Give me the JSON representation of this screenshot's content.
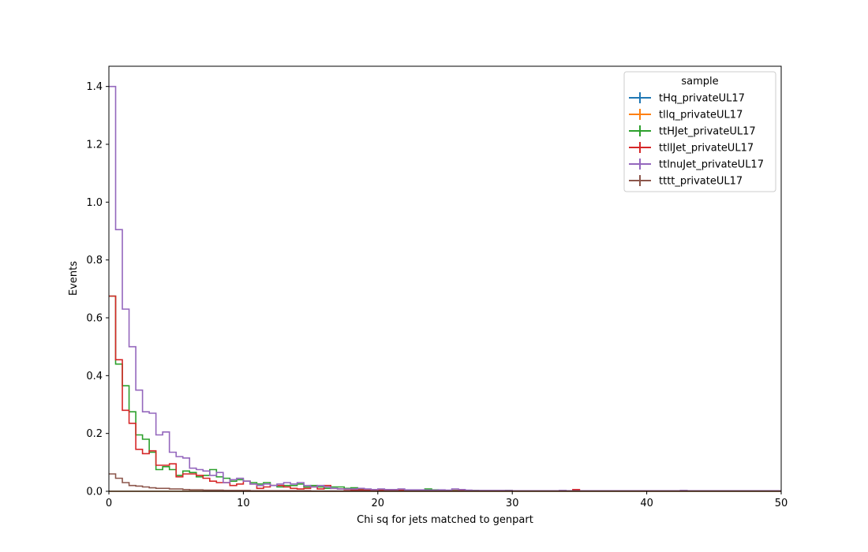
{
  "chart_data": {
    "type": "line",
    "subtype": "step-histogram",
    "xlabel": "Chi sq for jets matched to genpart",
    "ylabel": "Events",
    "xlim": [
      0,
      50
    ],
    "ylim": [
      0,
      1.47
    ],
    "xticks": [
      0,
      10,
      20,
      30,
      40,
      50
    ],
    "yticks": [
      0.0,
      0.2,
      0.4,
      0.6,
      0.8,
      1.0,
      1.2,
      1.4
    ],
    "grid": false,
    "legend": {
      "title": "sample",
      "placement": "top-right"
    },
    "bin_width": 0.5,
    "series": [
      {
        "name": "tHq_privateUL17",
        "color": "#1f77b4",
        "values": [
          0
        ]
      },
      {
        "name": "tllq_privateUL17",
        "color": "#ff7f0e",
        "values": [
          0
        ]
      },
      {
        "name": "ttHJet_privateUL17",
        "color": "#2ca02c",
        "values": [
          0.675,
          0.44,
          0.365,
          0.275,
          0.195,
          0.18,
          0.135,
          0.075,
          0.085,
          0.075,
          0.055,
          0.07,
          0.065,
          0.05,
          0.055,
          0.075,
          0.05,
          0.045,
          0.035,
          0.04,
          0.035,
          0.03,
          0.025,
          0.03,
          0.02,
          0.015,
          0.02,
          0.02,
          0.025,
          0.015,
          0.02,
          0.015,
          0.01,
          0.015,
          0.015,
          0.01,
          0.012,
          0.006,
          0.005,
          0.004,
          0.006,
          0.004,
          0.003,
          0.004,
          0.003,
          0.004,
          0.003,
          0.008,
          0.005,
          0.003,
          0.003,
          0.003,
          0.002,
          0.002,
          0.003,
          0.002,
          0.002,
          0.002,
          0.002,
          0.003,
          0.002,
          0.002,
          0.002,
          0.002,
          0.001,
          0.001,
          0.001,
          0.001,
          0.001,
          0.001,
          0.001,
          0.001,
          0.001,
          0.001,
          0.001,
          0.001,
          0.001,
          0.001,
          0.001,
          0.001,
          0.001,
          0.001,
          0.001,
          0.001,
          0.001,
          0.001,
          0.001,
          0.001,
          0.001,
          0.001,
          0.001,
          0.001,
          0.001,
          0.001,
          0.001,
          0.001,
          0.001,
          0.001,
          0.001,
          0.001
        ]
      },
      {
        "name": "ttllJet_privateUL17",
        "color": "#d62728",
        "values": [
          0.675,
          0.455,
          0.28,
          0.235,
          0.145,
          0.13,
          0.14,
          0.09,
          0.09,
          0.095,
          0.05,
          0.06,
          0.06,
          0.055,
          0.045,
          0.035,
          0.03,
          0.03,
          0.02,
          0.025,
          0.035,
          0.025,
          0.01,
          0.015,
          0.02,
          0.02,
          0.015,
          0.01,
          0.008,
          0.01,
          0.015,
          0.008,
          0.02,
          0.01,
          0.008,
          0.006,
          0.005,
          0.005,
          0.004,
          0.005,
          0.004,
          0.003,
          0.004,
          0.004,
          0.003,
          0.002,
          0.003,
          0.002,
          0.003,
          0.002,
          0.002,
          0.002,
          0.002,
          0.002,
          0.002,
          0.001,
          0.001,
          0.001,
          0.001,
          0.002,
          0.001,
          0.001,
          0.001,
          0.001,
          0.001,
          0.001,
          0.001,
          0.001,
          0.001,
          0.006,
          0.001,
          0.001,
          0.001,
          0.001,
          0.001,
          0.001,
          0.001,
          0.001,
          0.001,
          0.001,
          0.001,
          0.001,
          0.001,
          0.001,
          0.001,
          0.001,
          0.001,
          0.001,
          0.001,
          0.001,
          0.001,
          0.001,
          0.001,
          0.001,
          0.001,
          0.001,
          0.001,
          0.001,
          0.001,
          0.001
        ]
      },
      {
        "name": "ttlnuJet_privateUL17",
        "color": "#9467bd",
        "values": [
          1.4,
          0.905,
          0.63,
          0.5,
          0.35,
          0.275,
          0.27,
          0.195,
          0.205,
          0.135,
          0.12,
          0.115,
          0.08,
          0.075,
          0.07,
          0.055,
          0.065,
          0.03,
          0.04,
          0.045,
          0.035,
          0.025,
          0.02,
          0.025,
          0.02,
          0.025,
          0.03,
          0.025,
          0.03,
          0.02,
          0.015,
          0.02,
          0.015,
          0.01,
          0.008,
          0.008,
          0.008,
          0.01,
          0.008,
          0.006,
          0.008,
          0.006,
          0.006,
          0.008,
          0.005,
          0.005,
          0.005,
          0.004,
          0.004,
          0.005,
          0.004,
          0.008,
          0.006,
          0.004,
          0.003,
          0.003,
          0.003,
          0.003,
          0.003,
          0.003,
          0.002,
          0.002,
          0.002,
          0.002,
          0.002,
          0.002,
          0.002,
          0.003,
          0.002,
          0.002,
          0.002,
          0.002,
          0.002,
          0.002,
          0.002,
          0.002,
          0.002,
          0.002,
          0.002,
          0.002,
          0.002,
          0.002,
          0.002,
          0.002,
          0.002,
          0.003,
          0.002,
          0.002,
          0.002,
          0.002,
          0.002,
          0.002,
          0.002,
          0.002,
          0.002,
          0.002,
          0.002,
          0.002,
          0.002,
          0.002
        ]
      },
      {
        "name": "tttt_privateUL17",
        "color": "#8c564b",
        "values": [
          0.06,
          0.045,
          0.03,
          0.02,
          0.018,
          0.015,
          0.012,
          0.01,
          0.01,
          0.008,
          0.008,
          0.006,
          0.005,
          0.005,
          0.004,
          0.004,
          0.004,
          0.003,
          0.003,
          0.003,
          0.003,
          0.002,
          0.002,
          0.002,
          0.002,
          0.002,
          0.002,
          0.002,
          0.002,
          0.002,
          0.001,
          0.001,
          0.001,
          0.001,
          0.001,
          0.001,
          0.001,
          0.001,
          0.001,
          0.001,
          0.001,
          0.001,
          0.001,
          0.001,
          0.001,
          0.001,
          0.001,
          0.001,
          0.001,
          0.001,
          0.001,
          0.001,
          0.001,
          0.001,
          0.001,
          0.001,
          0.001,
          0.001,
          0.001,
          0.001,
          0.001,
          0.001,
          0.001,
          0.001,
          0.001,
          0.001,
          0.001,
          0.001,
          0.001,
          0.001,
          0.001,
          0.001,
          0.001,
          0.001,
          0.001,
          0.001,
          0.001,
          0.001,
          0.001,
          0.001,
          0.001,
          0.001,
          0.001,
          0.001,
          0.001,
          0.001,
          0.001,
          0.001,
          0.001,
          0.001,
          0.001,
          0.001,
          0.001,
          0.001,
          0.001,
          0.001,
          0.001,
          0.001,
          0.001,
          0.001
        ]
      }
    ]
  }
}
